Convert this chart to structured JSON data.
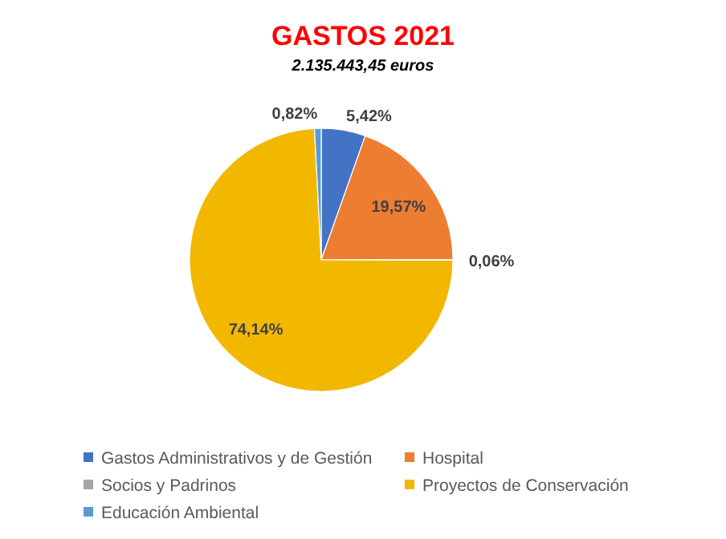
{
  "chart_data": {
    "type": "pie",
    "title": "GASTOS 2021",
    "subtitle": "2.135.443,45 euros",
    "categories": [
      "Gastos Administrativos y de Gestión",
      "Hospital",
      "Socios y Padrinos",
      "Proyectos de Conservación",
      "Educación Ambiental"
    ],
    "values": [
      5.42,
      19.57,
      0.06,
      74.14,
      0.82
    ],
    "colors": [
      "#4472c4",
      "#ed7d31",
      "#a5a5a5",
      "#f2b800",
      "#5b9bd5"
    ],
    "value_labels": [
      "5,42%",
      "19,57%",
      "0,06%",
      "74,14%",
      "0,82%"
    ],
    "legend": "bottom"
  }
}
